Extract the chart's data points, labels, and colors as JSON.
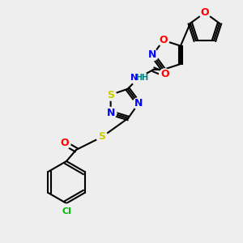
{
  "bg_color": "#eeeeee",
  "atom_colors": {
    "C": "#000000",
    "N": "#0000ff",
    "O": "#ff0000",
    "S": "#cccc00",
    "Cl": "#00bb00",
    "H": "#008080"
  },
  "bond_color": "#000000",
  "figsize": [
    3.0,
    3.0
  ],
  "dpi": 100
}
